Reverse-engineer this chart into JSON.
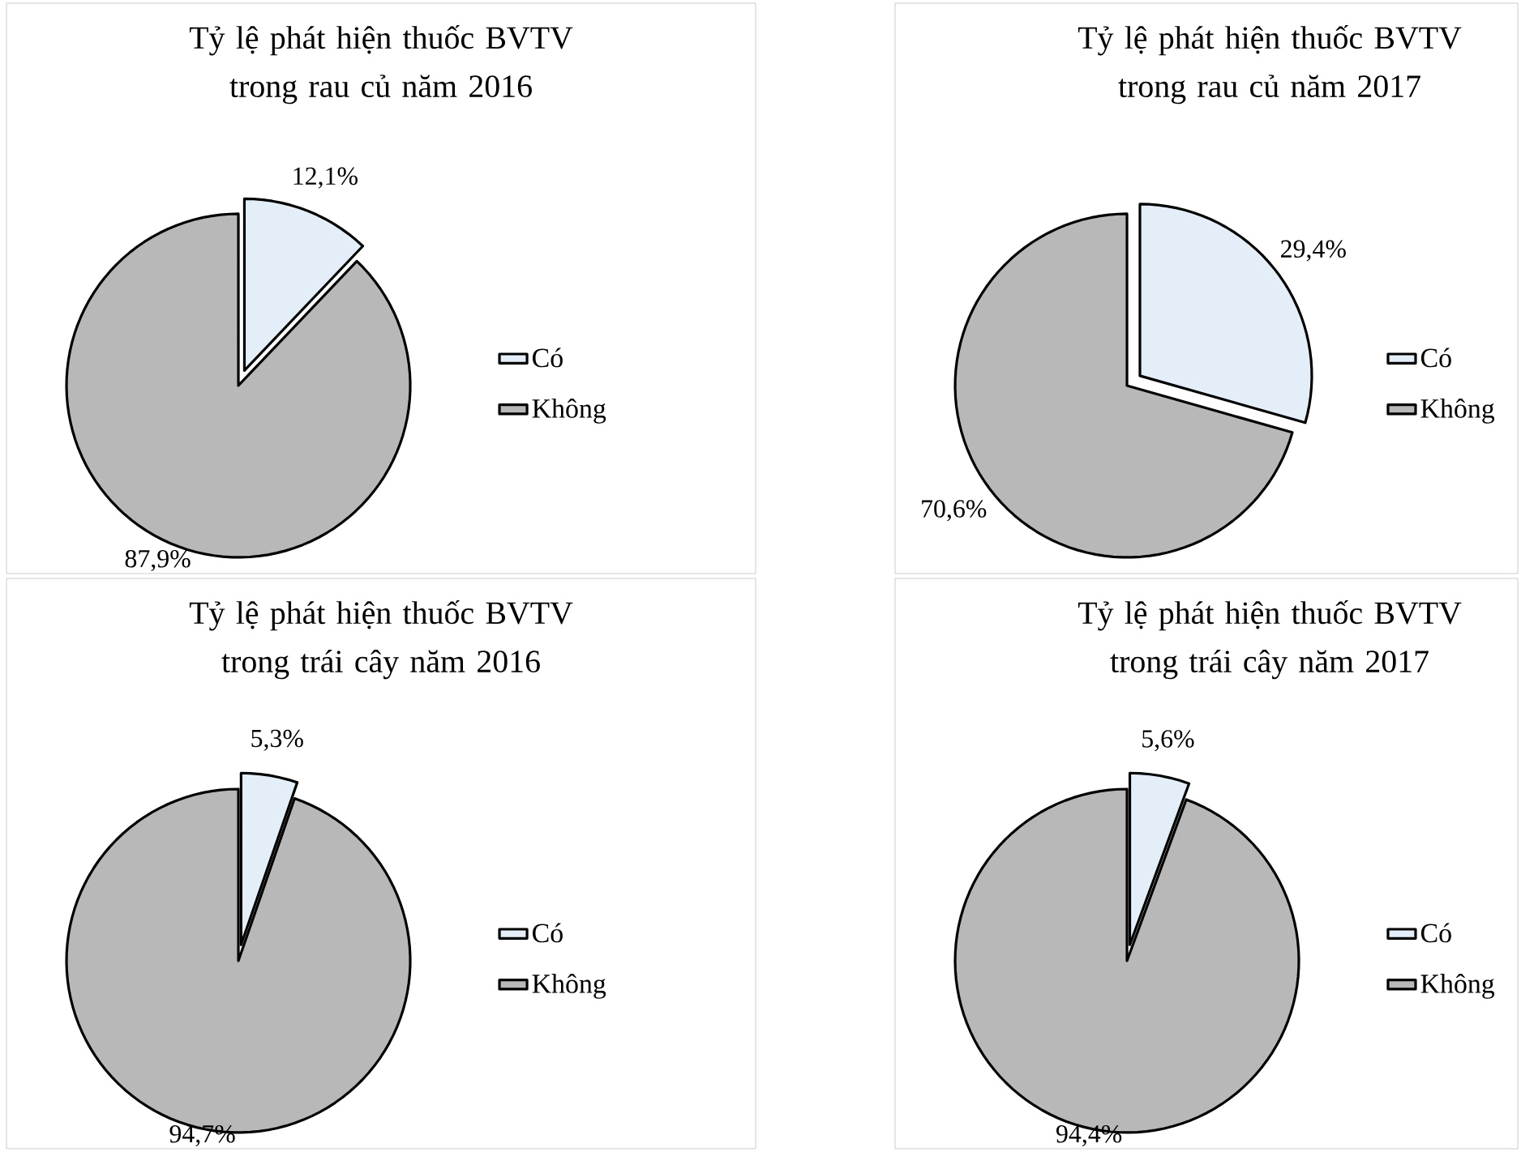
{
  "chart_data": [
    {
      "type": "pie",
      "title": "Tỷ lệ phát hiện thuốc BVTV trong rau củ năm 2016",
      "categories": [
        "Có",
        "Không"
      ],
      "values": [
        12.1,
        87.9
      ],
      "value_labels": [
        "12,1%",
        "87,9%"
      ],
      "colors": [
        "#e4eef8",
        "#b8b8b8"
      ],
      "legend": "right"
    },
    {
      "type": "pie",
      "title": "Tỷ lệ phát hiện thuốc BVTV trong rau củ năm 2017",
      "categories": [
        "Có",
        "Không"
      ],
      "values": [
        29.4,
        70.6
      ],
      "value_labels": [
        "29,4%",
        "70,6%"
      ],
      "colors": [
        "#e4eef8",
        "#b8b8b8"
      ],
      "legend": "right"
    },
    {
      "type": "pie",
      "title": "Tỷ lệ phát hiện thuốc BVTV trong trái cây năm 2016",
      "categories": [
        "Có",
        "Không"
      ],
      "values": [
        5.3,
        94.7
      ],
      "value_labels": [
        "5,3%",
        "94,7%"
      ],
      "colors": [
        "#e4eef8",
        "#b8b8b8"
      ],
      "legend": "right"
    },
    {
      "type": "pie",
      "title": "Tỷ lệ phát hiện thuốc BVTV trong trái cây năm 2017",
      "categories": [
        "Có",
        "Không"
      ],
      "values": [
        5.6,
        94.4
      ],
      "value_labels": [
        "5,6%",
        "94,4%"
      ],
      "colors": [
        "#e4eef8",
        "#b8b8b8"
      ],
      "legend": "right"
    }
  ]
}
